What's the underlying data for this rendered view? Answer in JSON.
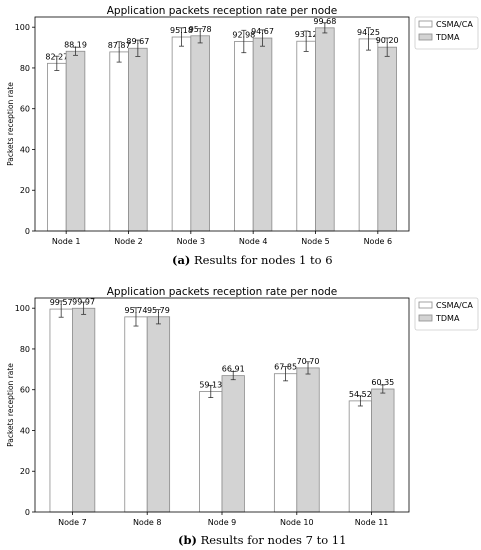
{
  "colors": {
    "series_1_fill": "#ffffff",
    "series_2_fill": "#d3d3d3",
    "bar_edge": "#8c8c8c",
    "axis": "#000000"
  },
  "chart_data": [
    {
      "type": "bar",
      "title": "Application packets reception rate per node",
      "ylabel": "Packets reception rate",
      "xlabel": "",
      "categories": [
        "Node 1",
        "Node 2",
        "Node 3",
        "Node 4",
        "Node 5",
        "Node 6"
      ],
      "ylim": [
        0,
        105
      ],
      "yticks": [
        0,
        20,
        40,
        60,
        80,
        100
      ],
      "legend_position": "outside-right",
      "series": [
        {
          "name": "CSMA/CA",
          "values": [
            82.27,
            87.87,
            95.18,
            92.98,
            93.12,
            94.25
          ],
          "labels": [
            "82.27",
            "87.87",
            "95.18",
            "92.98",
            "93.12",
            "94.25"
          ],
          "errors": [
            3.5,
            5,
            4.5,
            5.5,
            5,
            5.5
          ]
        },
        {
          "name": "TDMA",
          "values": [
            88.19,
            89.67,
            95.78,
            94.67,
            99.68,
            90.2
          ],
          "labels": [
            "88.19",
            "89.67",
            "95.78",
            "94.67",
            "99.68",
            "90.20"
          ],
          "errors": [
            2,
            4,
            3.5,
            4,
            2.5,
            4.5
          ]
        }
      ],
      "caption_tag": "(a)",
      "caption_text": "Results for nodes 1 to 6"
    },
    {
      "type": "bar",
      "title": "Application packets reception rate per node",
      "ylabel": "Packets reception rate",
      "xlabel": "",
      "categories": [
        "Node 7",
        "Node 8",
        "Node 9",
        "Node 10",
        "Node 11"
      ],
      "ylim": [
        0,
        105
      ],
      "yticks": [
        0,
        20,
        40,
        60,
        80,
        100
      ],
      "legend_position": "outside-right",
      "series": [
        {
          "name": "CSMA/CA",
          "values": [
            99.57,
            95.74,
            59.13,
            67.85,
            54.52
          ],
          "labels": [
            "99.57",
            "95.74",
            "59.13",
            "67.85",
            "54.52"
          ],
          "errors": [
            4,
            4.5,
            3,
            3.5,
            2.5
          ]
        },
        {
          "name": "TDMA",
          "values": [
            99.97,
            95.79,
            66.91,
            70.7,
            60.35
          ],
          "labels": [
            "99.97",
            "95.79",
            "66.91",
            "70.70",
            "60.35"
          ],
          "errors": [
            3,
            3.5,
            2,
            3,
            2
          ]
        }
      ],
      "caption_tag": "(b)",
      "caption_text": "Results for nodes 7 to 11"
    }
  ]
}
